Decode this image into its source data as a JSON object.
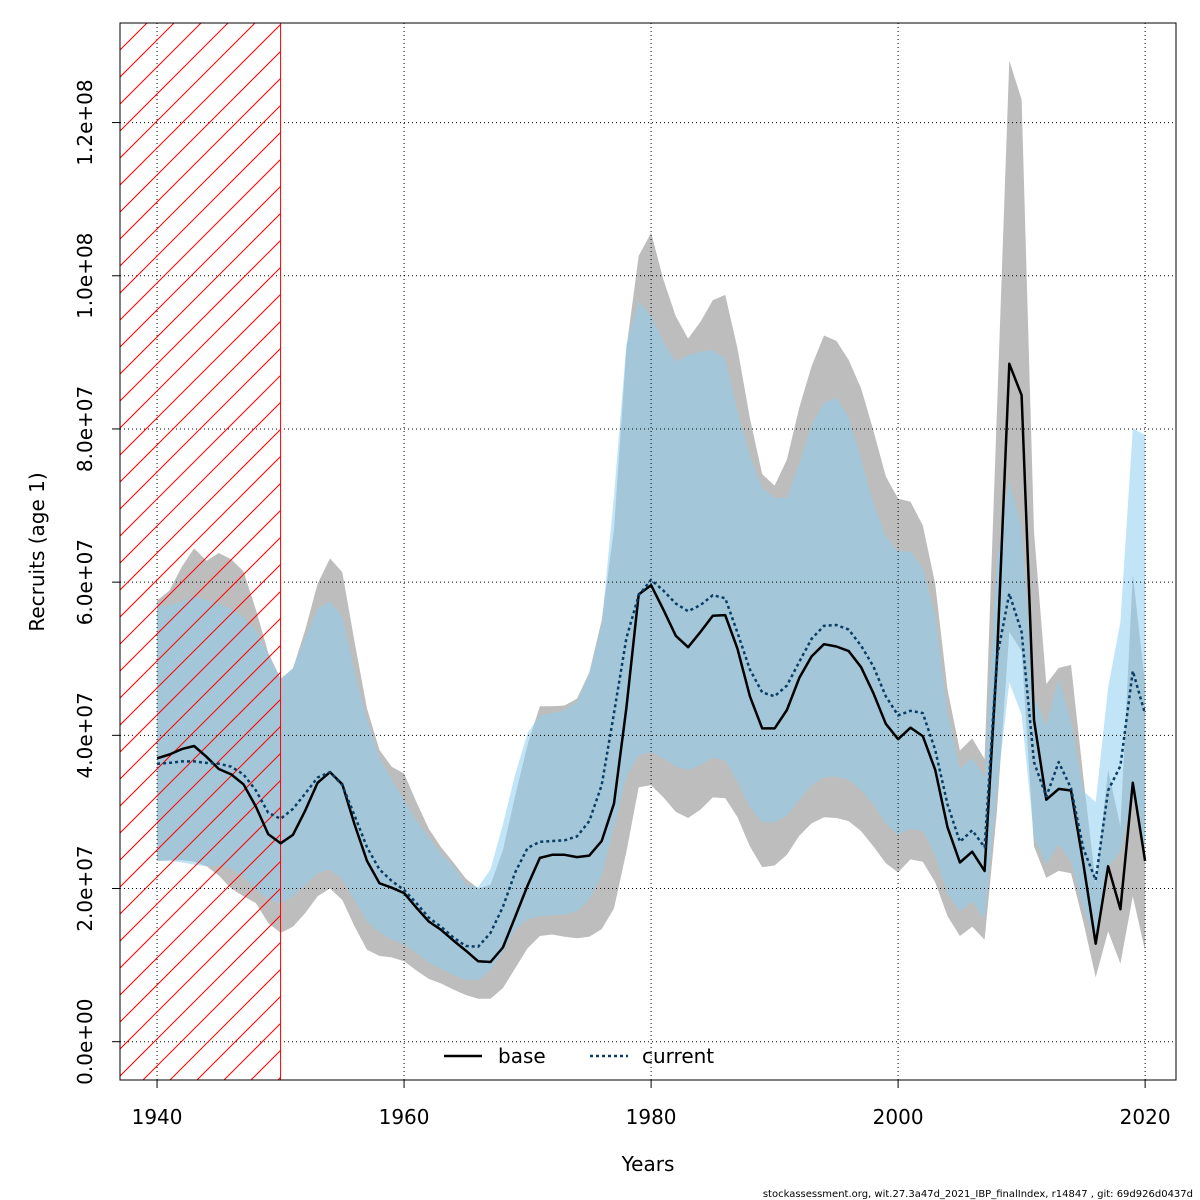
{
  "chart_data": {
    "type": "area",
    "xlabel": "Years",
    "ylabel": "Recruits (age 1)",
    "xlim": [
      1937,
      2022.5
    ],
    "ylim": [
      -5000000,
      133000000
    ],
    "x_ticks": [
      1940,
      1960,
      1980,
      2000,
      2020
    ],
    "x_tick_labels": [
      "1940",
      "1960",
      "1980",
      "2000",
      "2020"
    ],
    "y_ticks": [
      0,
      20000000,
      40000000,
      60000000,
      80000000,
      100000000,
      120000000
    ],
    "y_tick_labels": [
      "0.0e+00",
      "2.0e+07",
      "4.0e+07",
      "6.0e+07",
      "8.0e+07",
      "1.0e+08",
      "1.2e+08"
    ],
    "grid": true,
    "hatched_region": {
      "x_start": 1937,
      "x_end": 1950,
      "color": "#ff0000"
    },
    "years": [
      1940,
      1941,
      1942,
      1943,
      1944,
      1945,
      1946,
      1947,
      1948,
      1949,
      1950,
      1951,
      1952,
      1953,
      1954,
      1955,
      1956,
      1957,
      1958,
      1959,
      1960,
      1961,
      1962,
      1963,
      1964,
      1965,
      1966,
      1967,
      1968,
      1969,
      1970,
      1971,
      1972,
      1973,
      1974,
      1975,
      1976,
      1977,
      1978,
      1979,
      1980,
      1981,
      1982,
      1983,
      1984,
      1985,
      1986,
      1987,
      1988,
      1989,
      1990,
      1991,
      1992,
      1993,
      1994,
      1995,
      1996,
      1997,
      1998,
      1999,
      2000,
      2001,
      2002,
      2003,
      2004,
      2005,
      2006,
      2007,
      2008,
      2009,
      2010,
      2011,
      2012,
      2013,
      2014,
      2015,
      2016,
      2017,
      2018,
      2019,
      2020
    ],
    "series": [
      {
        "name": "base",
        "color": "#000000",
        "band_color": "#bdbdbd",
        "line_style": "solid",
        "values": [
          37.0,
          37.5,
          38.2,
          38.6,
          37.2,
          35.6,
          34.9,
          33.6,
          30.7,
          27.1,
          25.9,
          27.0,
          30.2,
          33.8,
          35.2,
          33.6,
          28.3,
          23.6,
          20.7,
          20.1,
          19.4,
          17.5,
          15.7,
          14.6,
          13.2,
          11.9,
          10.5,
          10.4,
          12.3,
          16.3,
          20.4,
          24.0,
          24.4,
          24.4,
          24.1,
          24.3,
          26.2,
          31.1,
          43.6,
          58.4,
          59.6,
          56.4,
          53.0,
          51.5,
          53.5,
          55.6,
          55.7,
          51.3,
          45.1,
          40.9,
          40.9,
          43.3,
          47.5,
          50.3,
          51.9,
          51.6,
          51.0,
          48.9,
          45.5,
          41.5,
          39.5,
          41.0,
          39.9,
          35.5,
          28.0,
          23.4,
          24.8,
          22.3,
          49.7,
          88.5,
          84.4,
          42.0,
          31.6,
          33.0,
          32.8,
          23.2,
          12.8,
          22.9,
          17.3,
          33.8,
          23.6
        ],
        "lower": [
          23.6,
          23.7,
          23.7,
          23.5,
          22.9,
          21.7,
          20.0,
          19.0,
          18.1,
          15.5,
          14.2,
          15.0,
          16.8,
          19.0,
          20.0,
          18.5,
          15.0,
          12.0,
          11.2,
          11.0,
          10.5,
          9.3,
          8.2,
          7.6,
          6.8,
          6.1,
          5.6,
          5.6,
          7.0,
          9.6,
          12.2,
          13.8,
          14.0,
          13.7,
          13.5,
          13.7,
          14.7,
          17.4,
          24.8,
          33.2,
          33.5,
          31.9,
          30.0,
          29.2,
          30.3,
          31.9,
          31.8,
          29.3,
          25.5,
          22.8,
          23.0,
          24.4,
          26.9,
          28.5,
          29.3,
          29.2,
          28.8,
          27.5,
          25.5,
          23.3,
          22.1,
          23.8,
          23.5,
          20.8,
          16.4,
          13.8,
          15.0,
          13.3,
          30.0,
          53.5,
          51.0,
          25.5,
          21.4,
          22.3,
          22.0,
          15.6,
          8.4,
          14.4,
          10.2,
          19.0,
          11.9
        ],
        "upper": [
          57.6,
          58.9,
          62.0,
          64.4,
          62.8,
          63.8,
          63.0,
          61.4,
          56.4,
          50.8,
          47.4,
          48.7,
          53.8,
          59.8,
          63.1,
          61.3,
          52.1,
          43.5,
          38.1,
          35.9,
          35.0,
          31.3,
          27.8,
          25.4,
          23.4,
          21.3,
          20.0,
          20.5,
          25.0,
          32.1,
          38.8,
          43.8,
          43.8,
          43.9,
          44.8,
          48.2,
          55.0,
          66.9,
          90.5,
          102.6,
          105.6,
          99.5,
          94.7,
          91.8,
          94.0,
          96.8,
          97.5,
          90.5,
          81.4,
          74.1,
          72.6,
          76.0,
          82.8,
          88.2,
          92.2,
          91.5,
          89.0,
          85.3,
          79.8,
          73.8,
          70.9,
          70.5,
          67.4,
          59.8,
          46.0,
          38.0,
          39.6,
          36.9,
          82.2,
          128.1,
          123.0,
          66.6,
          46.7,
          48.8,
          49.2,
          34.5,
          20.6,
          35.5,
          28.1,
          61.1,
          46.6
        ]
      },
      {
        "name": "current",
        "color": "#0a3d66",
        "band_color": "#8ecfef",
        "line_style": "dotted",
        "values": [
          36.3,
          36.4,
          36.6,
          36.6,
          36.4,
          36.3,
          35.9,
          34.9,
          32.8,
          29.9,
          29.1,
          30.4,
          32.4,
          34.5,
          35.2,
          33.5,
          29.5,
          25.4,
          22.5,
          21.0,
          19.8,
          18.1,
          16.2,
          15.0,
          13.6,
          12.5,
          12.4,
          14.2,
          17.6,
          22.1,
          25.3,
          26.1,
          26.2,
          26.3,
          26.8,
          28.8,
          33.5,
          42.9,
          52.7,
          58.3,
          60.3,
          58.9,
          57.2,
          56.2,
          57.0,
          58.3,
          57.9,
          53.4,
          48.6,
          45.6,
          45.1,
          46.5,
          49.6,
          52.6,
          54.3,
          54.4,
          53.8,
          51.7,
          49.0,
          45.1,
          42.6,
          43.2,
          42.9,
          38.1,
          31.0,
          26.1,
          27.6,
          25.4,
          50.1,
          58.5,
          53.5,
          36.5,
          32.0,
          36.5,
          33.1,
          25.2,
          21.1,
          32.8,
          36.0,
          48.4,
          42.8
        ],
        "lower": [
          23.6,
          23.6,
          23.4,
          23.1,
          22.9,
          23.0,
          22.6,
          21.5,
          19.9,
          18.6,
          18.0,
          19.0,
          20.5,
          22.0,
          22.5,
          21.2,
          18.4,
          15.7,
          14.3,
          13.3,
          12.7,
          11.6,
          10.3,
          9.5,
          8.7,
          8.1,
          8.0,
          9.4,
          11.7,
          14.6,
          16.0,
          16.4,
          16.5,
          16.6,
          17.0,
          18.6,
          21.7,
          27.9,
          34.6,
          37.4,
          37.8,
          37.0,
          35.9,
          35.5,
          36.1,
          37.1,
          36.7,
          33.9,
          30.6,
          28.7,
          28.6,
          29.5,
          31.6,
          33.5,
          34.5,
          34.6,
          34.2,
          32.8,
          31.0,
          28.5,
          27.0,
          27.8,
          27.5,
          24.3,
          19.3,
          17.0,
          18.3,
          16.0,
          32.7,
          46.9,
          42.7,
          26.6,
          23.1,
          25.8,
          23.5,
          17.5,
          13.0,
          22.8,
          24.8,
          31.9,
          24.7
        ],
        "upper": [
          56.8,
          57.0,
          57.4,
          58.2,
          57.6,
          57.2,
          56.5,
          55.4,
          53.7,
          50.6,
          47.3,
          48.8,
          52.8,
          56.5,
          57.5,
          55.4,
          48.3,
          42.0,
          37.1,
          34.3,
          31.5,
          28.9,
          26.7,
          24.6,
          22.9,
          20.5,
          20.2,
          22.5,
          28.4,
          34.9,
          40.3,
          42.6,
          42.9,
          43.3,
          44.4,
          48.0,
          54.5,
          71.3,
          91.1,
          96.6,
          94.8,
          91.4,
          88.8,
          89.6,
          90.1,
          90.3,
          89.2,
          82.3,
          76.6,
          72.3,
          71.0,
          71.0,
          75.5,
          80.5,
          83.4,
          84.1,
          81.5,
          76.1,
          70.3,
          66.0,
          64.0,
          64.0,
          61.8,
          55.6,
          43.1,
          35.6,
          37.0,
          34.5,
          62.7,
          73.2,
          67.1,
          45.0,
          41.3,
          47.4,
          41.8,
          32.7,
          31.3,
          46.2,
          54.8,
          80.1,
          79.2
        ]
      }
    ]
  },
  "legend": {
    "base_label": "base",
    "current_label": "current"
  },
  "footer": {
    "text": "stockassessment.org, wit.27.3a47d_2021_IBP_finalIndex, r14847 , git: 69d926d0437d"
  }
}
